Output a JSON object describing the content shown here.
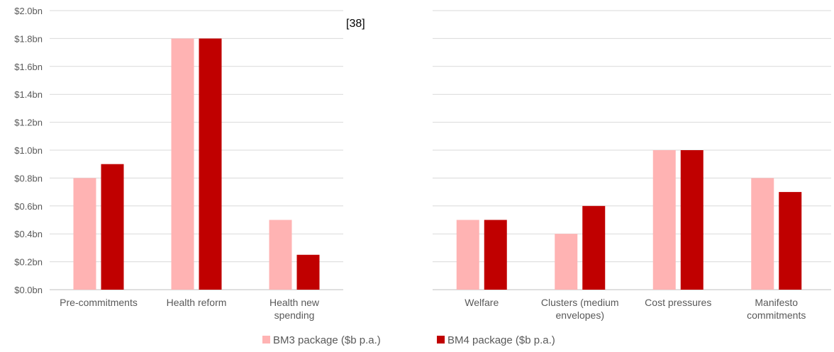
{
  "reference_label": "[38]",
  "chart_data": {
    "type": "bar",
    "ylim": [
      0,
      2.0
    ],
    "y_ticks": [
      "$0.0bn",
      "$0.2bn",
      "$0.4bn",
      "$0.6bn",
      "$0.8bn",
      "$1.0bn",
      "$1.2bn",
      "$1.4bn",
      "$1.6bn",
      "$1.8bn",
      "$2.0bn"
    ],
    "grid": true,
    "legend_position": "bottom-center",
    "panels": [
      {
        "categories": [
          "Pre-commitments",
          "Health reform",
          "Health new spending"
        ],
        "category_lines": [
          [
            "Pre-commitments"
          ],
          [
            "Health reform"
          ],
          [
            "Health new",
            "spending"
          ]
        ],
        "series": [
          {
            "name": "BM3 package ($b p.a.)",
            "color": "#FFB3B3",
            "values": [
              0.8,
              1.8,
              0.5
            ]
          },
          {
            "name": "BM4 package ($b p.a.)",
            "color": "#C00000",
            "values": [
              0.9,
              1.8,
              0.25
            ]
          }
        ]
      },
      {
        "categories": [
          "Welfare",
          "Clusters (medium envelopes)",
          "Cost pressures",
          "Manifesto commitments"
        ],
        "category_lines": [
          [
            "Welfare"
          ],
          [
            "Clusters (medium",
            "envelopes)"
          ],
          [
            "Cost pressures"
          ],
          [
            "Manifesto",
            "commitments"
          ]
        ],
        "series": [
          {
            "name": "BM3 package ($b p.a.)",
            "color": "#FFB3B3",
            "values": [
              0.5,
              0.4,
              1.0,
              0.8
            ]
          },
          {
            "name": "BM4 package ($b p.a.)",
            "color": "#C00000",
            "values": [
              0.5,
              0.6,
              1.0,
              0.7
            ]
          }
        ]
      }
    ],
    "legend": [
      {
        "label": "BM3 package ($b p.a.)",
        "color": "#FFB3B3"
      },
      {
        "label": "BM4 package ($b p.a.)",
        "color": "#C00000"
      }
    ]
  }
}
